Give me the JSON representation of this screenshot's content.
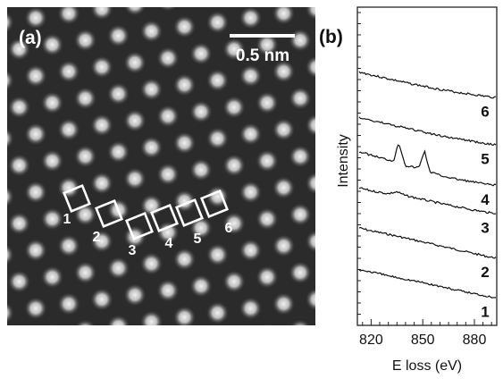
{
  "panel_a": {
    "label": "(a)",
    "scale_bar_label": "0.5 nm",
    "box_labels": [
      "1",
      "2",
      "3",
      "4",
      "5",
      "6"
    ]
  },
  "panel_b": {
    "label": "(b)"
  },
  "chart_data": {
    "type": "line",
    "xlabel": "E loss (eV)",
    "ylabel": "Intensity",
    "xlim": [
      812,
      893
    ],
    "xticks": [
      820,
      850,
      880
    ],
    "series_offset_order": [
      "1",
      "2",
      "3",
      "4",
      "5",
      "6"
    ],
    "series": [
      {
        "name": "6",
        "x": [
          812,
          820,
          830,
          840,
          850,
          860,
          870,
          880,
          890
        ],
        "y": [
          5.85,
          5.78,
          5.7,
          5.62,
          5.55,
          5.48,
          5.42,
          5.37,
          5.32
        ]
      },
      {
        "name": "5",
        "x": [
          812,
          820,
          830,
          840,
          850,
          860,
          870,
          880,
          890
        ],
        "y": [
          4.9,
          4.84,
          4.76,
          4.68,
          4.6,
          4.52,
          4.46,
          4.4,
          4.34
        ]
      },
      {
        "name": "4",
        "x": [
          812,
          820,
          830,
          833,
          836,
          840,
          846,
          848,
          851,
          854,
          860,
          870,
          880,
          890
        ],
        "y": [
          4.2,
          4.12,
          4.02,
          4.0,
          4.38,
          3.9,
          3.86,
          3.88,
          4.22,
          3.78,
          3.7,
          3.62,
          3.56,
          3.5
        ]
      },
      {
        "name": "3",
        "x": [
          812,
          820,
          830,
          835,
          840,
          850,
          860,
          870,
          880,
          890
        ],
        "y": [
          3.45,
          3.38,
          3.32,
          3.36,
          3.28,
          3.2,
          3.12,
          3.05,
          2.98,
          2.92
        ]
      },
      {
        "name": "2",
        "x": [
          812,
          820,
          830,
          840,
          850,
          860,
          870,
          880,
          890
        ],
        "y": [
          2.62,
          2.55,
          2.48,
          2.4,
          2.32,
          2.24,
          2.16,
          2.08,
          2.0
        ]
      },
      {
        "name": "1",
        "x": [
          812,
          820,
          830,
          840,
          850,
          860,
          870,
          880,
          890
        ],
        "y": [
          1.75,
          1.7,
          1.62,
          1.55,
          1.48,
          1.4,
          1.32,
          1.25,
          1.18
        ]
      }
    ]
  }
}
